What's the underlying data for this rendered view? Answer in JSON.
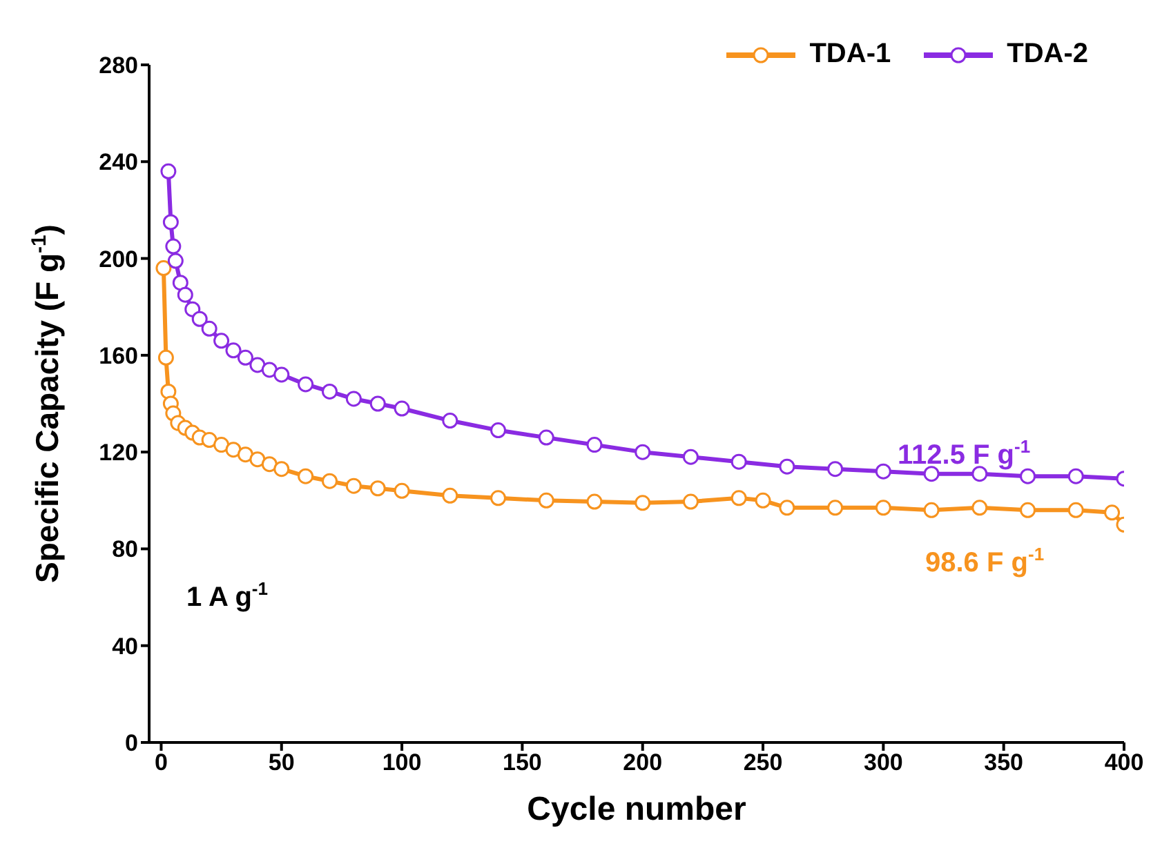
{
  "chart_data": {
    "type": "line",
    "xlabel": "Cycle number",
    "ylabel": "Specific Capacity (F g$^{-1}$)",
    "xlim": [
      -5,
      400
    ],
    "ylim": [
      0,
      280
    ],
    "xticks": [
      0,
      50,
      100,
      150,
      200,
      250,
      300,
      350,
      400
    ],
    "yticks": [
      0,
      40,
      80,
      120,
      160,
      200,
      240,
      280
    ],
    "marker": "circle",
    "legend": "top right",
    "annotations": [
      "1 A g$^{-1}$",
      "112.5 F g$^{-1}$",
      "98.6 F g$^{-1}$"
    ],
    "series": [
      {
        "name": "TDA-1",
        "color": "#f7931e",
        "x": [
          1,
          2,
          3,
          4,
          5,
          7,
          10,
          13,
          16,
          20,
          25,
          30,
          35,
          40,
          45,
          50,
          60,
          70,
          80,
          90,
          100,
          120,
          140,
          160,
          180,
          200,
          220,
          240,
          250,
          260,
          280,
          300,
          320,
          340,
          360,
          380,
          395,
          400
        ],
        "values": [
          196,
          159,
          145,
          140,
          136,
          132,
          130,
          128,
          126,
          125,
          123,
          121,
          119,
          117,
          115,
          113,
          110,
          108,
          106,
          105,
          104,
          102,
          101,
          100,
          99.5,
          99,
          99.5,
          101,
          100,
          97,
          97,
          97,
          96,
          97,
          96,
          96,
          95,
          90
        ]
      },
      {
        "name": "TDA-2",
        "color": "#8a2be2",
        "x": [
          3,
          4,
          5,
          6,
          8,
          10,
          13,
          16,
          20,
          25,
          30,
          35,
          40,
          45,
          50,
          60,
          70,
          80,
          90,
          100,
          120,
          140,
          160,
          180,
          200,
          220,
          240,
          260,
          280,
          300,
          320,
          340,
          360,
          380,
          400
        ],
        "values": [
          236,
          215,
          205,
          199,
          190,
          185,
          179,
          175,
          171,
          166,
          162,
          159,
          156,
          154,
          152,
          148,
          145,
          142,
          140,
          138,
          133,
          129,
          126,
          123,
          120,
          118,
          116,
          114,
          113,
          112,
          111,
          111,
          110,
          110,
          109
        ]
      }
    ]
  }
}
